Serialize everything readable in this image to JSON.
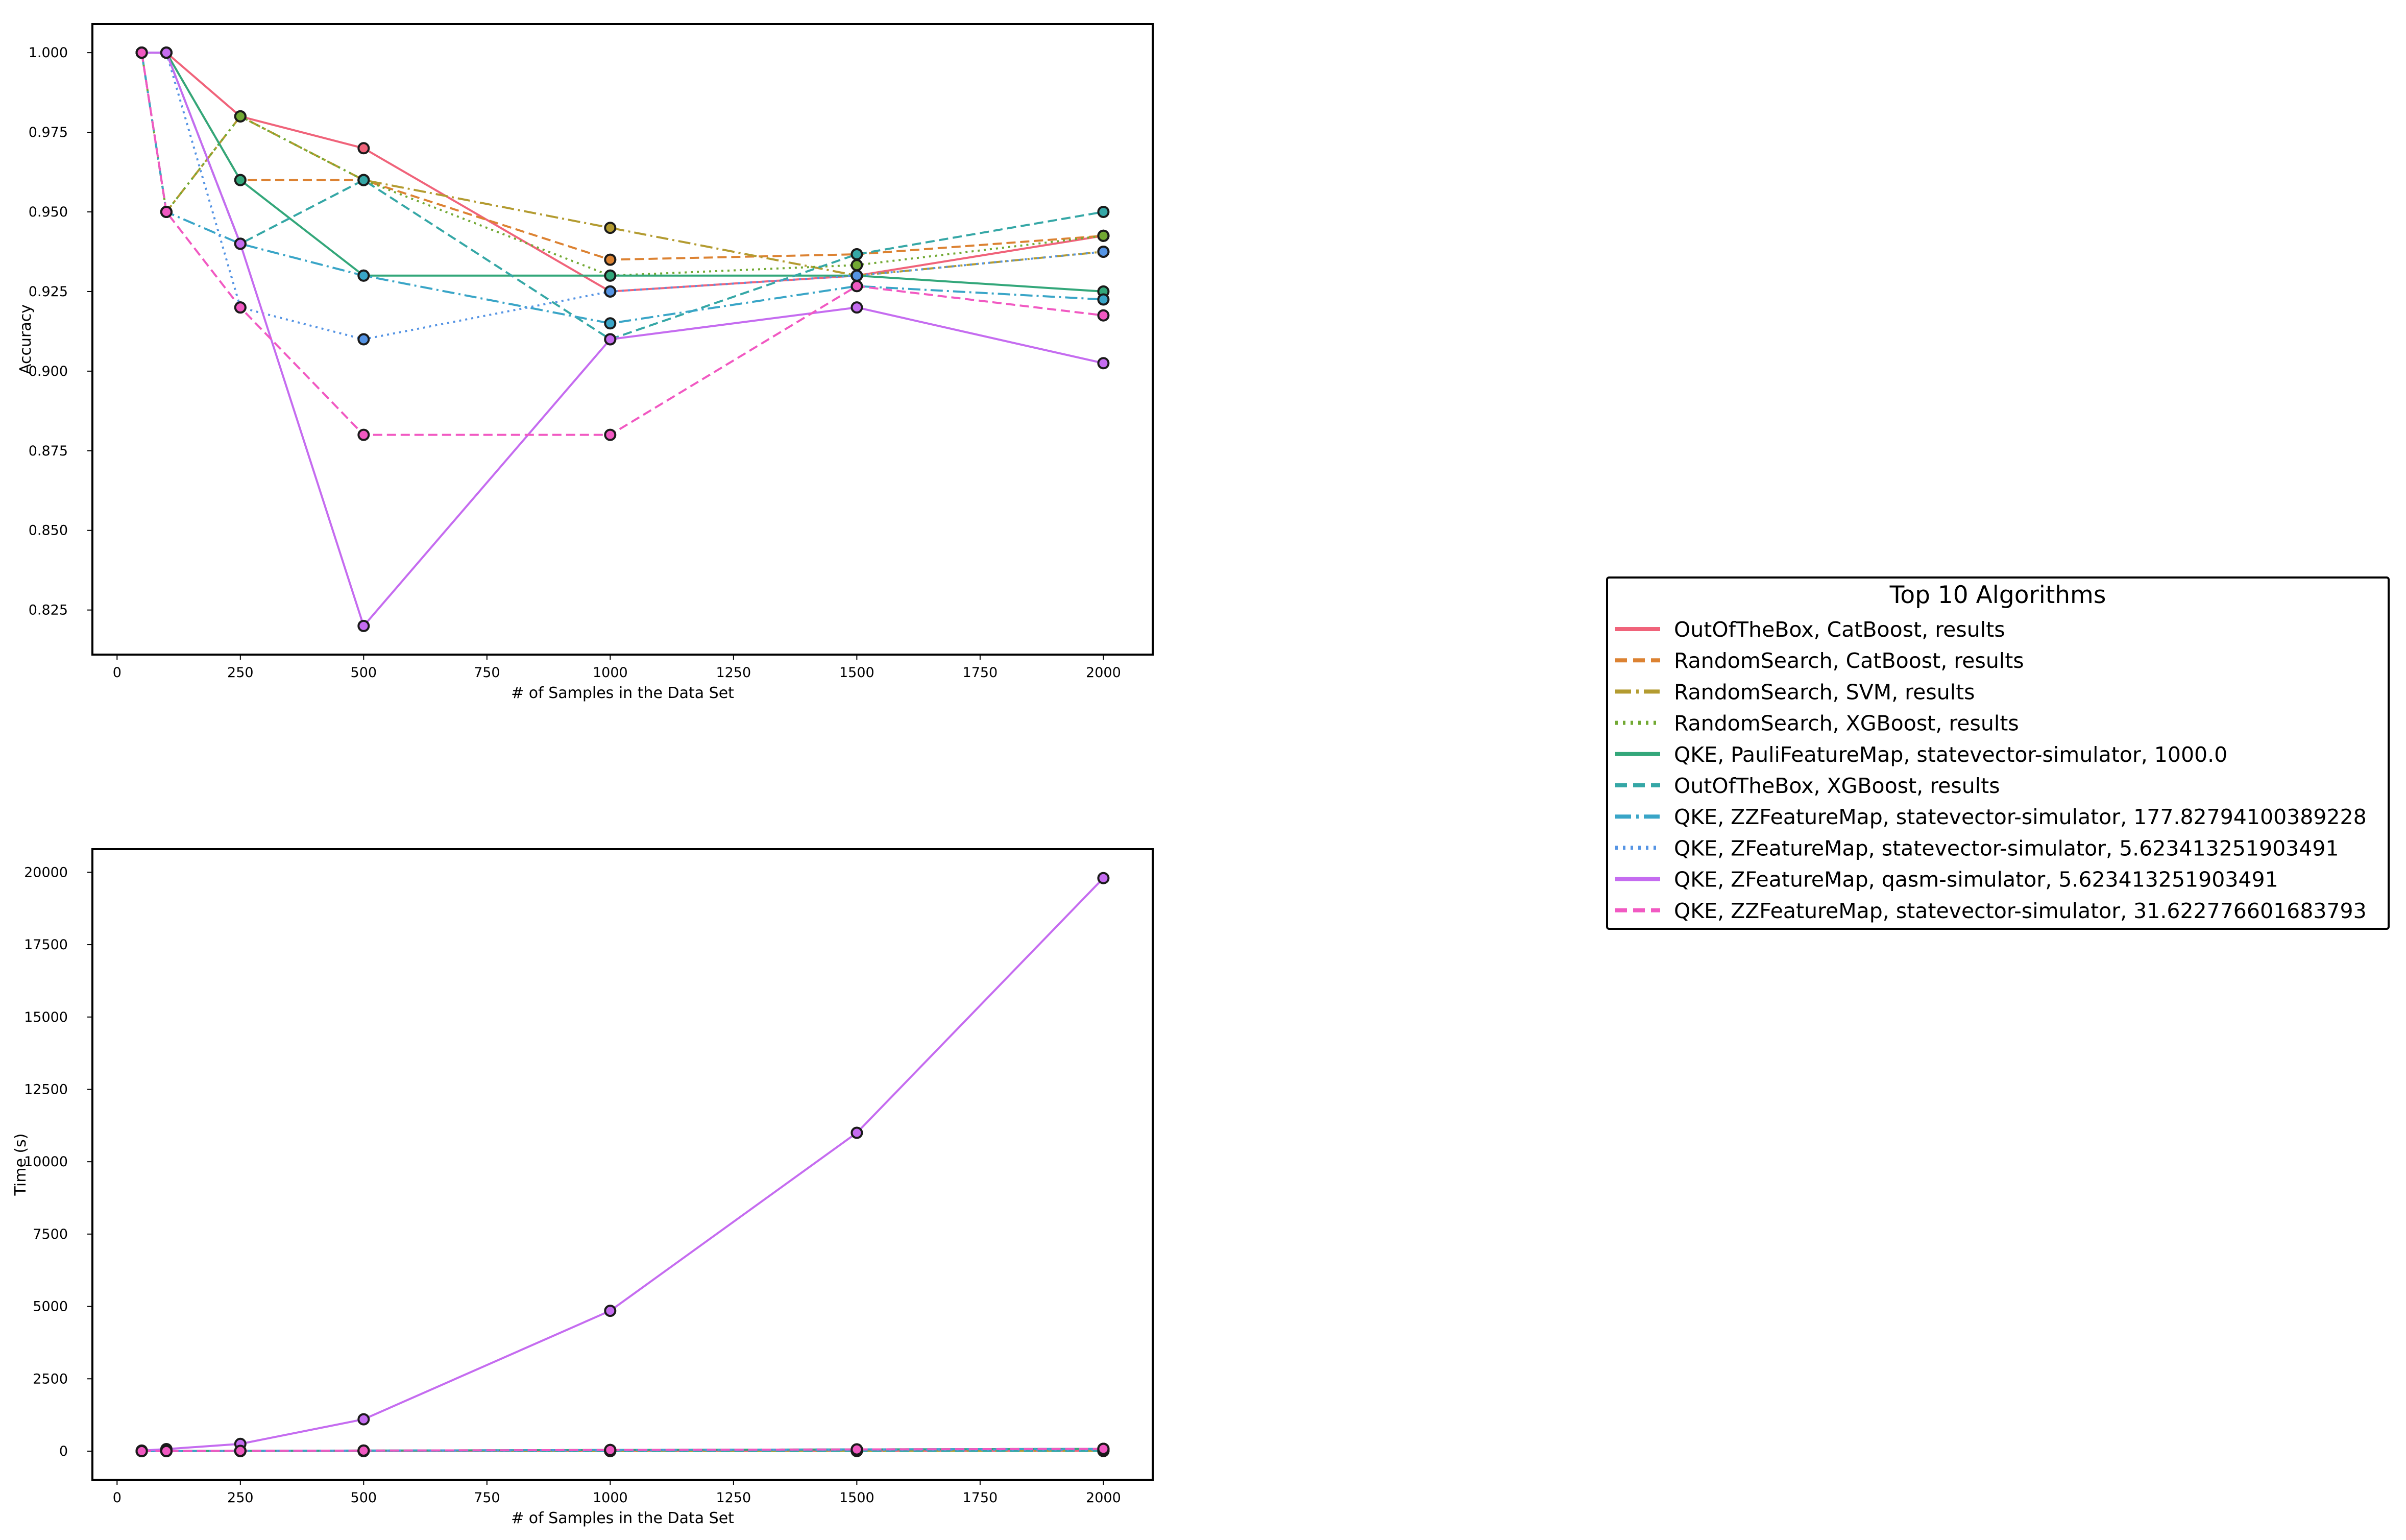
{
  "chart_data": [
    {
      "type": "line",
      "title": "",
      "xlabel": "# of Samples in the Data Set",
      "ylabel": "Accuracy",
      "xlim": [
        -50,
        2100
      ],
      "ylim": [
        0.811,
        1.009
      ],
      "xticks": [
        0,
        250,
        500,
        750,
        1000,
        1250,
        1500,
        1750,
        2000
      ],
      "xtick_labels": [
        "0",
        "250",
        "500",
        "750",
        "1000",
        "1250",
        "1500",
        "1750",
        "2000"
      ],
      "yticks": [
        0.825,
        0.85,
        0.875,
        0.9,
        0.925,
        0.95,
        0.975,
        1.0
      ],
      "ytick_labels": [
        "0.825",
        "0.850",
        "0.875",
        "0.900",
        "0.925",
        "0.950",
        "0.975",
        "1.000"
      ],
      "grid": false,
      "x": [
        50,
        100,
        250,
        500,
        1000,
        1500,
        2000
      ],
      "series": [
        {
          "name": "OutOfTheBox, CatBoost, results",
          "values": [
            1.0,
            1.0,
            0.98,
            0.97,
            0.925,
            0.93,
            0.9425
          ]
        },
        {
          "name": "RandomSearch, CatBoost, results",
          "values": [
            1.0,
            1.0,
            0.96,
            0.96,
            0.935,
            0.9367,
            0.9425
          ]
        },
        {
          "name": "RandomSearch, SVM, results",
          "values": [
            1.0,
            0.95,
            0.98,
            0.96,
            0.945,
            0.93,
            0.9375
          ]
        },
        {
          "name": "RandomSearch, XGBoost, results",
          "values": [
            1.0,
            0.95,
            0.98,
            0.96,
            0.93,
            0.9333,
            0.9425
          ]
        },
        {
          "name": "QKE, PauliFeatureMap, statevector-simulator, 1000.0",
          "values": [
            1.0,
            1.0,
            0.96,
            0.93,
            0.93,
            0.93,
            0.925
          ]
        },
        {
          "name": "OutOfTheBox, XGBoost, results",
          "values": [
            1.0,
            1.0,
            0.94,
            0.96,
            0.91,
            0.9367,
            0.95
          ]
        },
        {
          "name": "QKE, ZZFeatureMap, statevector-simulator, 177.82794100389228",
          "values": [
            1.0,
            0.95,
            0.94,
            0.93,
            0.915,
            0.9267,
            0.9225
          ]
        },
        {
          "name": "QKE, ZFeatureMap, statevector-simulator, 5.623413251903491",
          "values": [
            1.0,
            1.0,
            0.92,
            0.91,
            0.925,
            0.93,
            0.9375
          ]
        },
        {
          "name": "QKE, ZFeatureMap, qasm-simulator, 5.623413251903491",
          "values": [
            1.0,
            1.0,
            0.94,
            0.82,
            0.91,
            0.92,
            0.9025
          ]
        },
        {
          "name": "QKE, ZZFeatureMap, statevector-simulator, 31.622776601683793",
          "values": [
            1.0,
            0.95,
            0.92,
            0.88,
            0.88,
            0.9267,
            0.9175
          ]
        }
      ]
    },
    {
      "type": "line",
      "title": "",
      "xlabel": "# of Samples in the Data Set",
      "ylabel": "Time (s)",
      "xlim": [
        -50,
        2100
      ],
      "ylim": [
        -988,
        20800
      ],
      "xticks": [
        0,
        250,
        500,
        750,
        1000,
        1250,
        1500,
        1750,
        2000
      ],
      "xtick_labels": [
        "0",
        "250",
        "500",
        "750",
        "1000",
        "1250",
        "1500",
        "1750",
        "2000"
      ],
      "yticks": [
        0,
        2500,
        5000,
        7500,
        10000,
        12500,
        15000,
        17500,
        20000
      ],
      "ytick_labels": [
        "0",
        "2500",
        "5000",
        "7500",
        "10000",
        "12500",
        "15000",
        "17500",
        "20000"
      ],
      "grid": false,
      "x": [
        50,
        100,
        250,
        500,
        1000,
        1500,
        2000
      ],
      "series": [
        {
          "name": "OutOfTheBox, CatBoost, results",
          "values": [
            1,
            2,
            3,
            4,
            6,
            8,
            10
          ]
        },
        {
          "name": "RandomSearch, CatBoost, results",
          "values": [
            5,
            8,
            12,
            20,
            40,
            60,
            80
          ]
        },
        {
          "name": "RandomSearch, SVM, results",
          "values": [
            1,
            1,
            2,
            3,
            5,
            8,
            12
          ]
        },
        {
          "name": "RandomSearch, XGBoost, results",
          "values": [
            3,
            5,
            8,
            12,
            20,
            30,
            45
          ]
        },
        {
          "name": "QKE, PauliFeatureMap, statevector-simulator, 1000.0",
          "values": [
            2,
            4,
            10,
            20,
            40,
            60,
            80
          ]
        },
        {
          "name": "OutOfTheBox, XGBoost, results",
          "values": [
            0,
            0,
            1,
            1,
            2,
            3,
            4
          ]
        },
        {
          "name": "QKE, ZZFeatureMap, statevector-simulator, 177.82794100389228",
          "values": [
            2,
            4,
            10,
            20,
            40,
            60,
            80
          ]
        },
        {
          "name": "QKE, ZFeatureMap, statevector-simulator, 5.623413251903491",
          "values": [
            1,
            2,
            6,
            12,
            25,
            40,
            55
          ]
        },
        {
          "name": "QKE, ZFeatureMap, qasm-simulator, 5.623413251903491",
          "values": [
            20,
            70,
            250,
            1100,
            4850,
            11000,
            19800
          ]
        },
        {
          "name": "QKE, ZZFeatureMap, statevector-simulator, 31.622776601683793",
          "values": [
            2,
            4,
            10,
            20,
            40,
            60,
            80
          ]
        }
      ]
    }
  ],
  "legend": {
    "title": "Top 10 Algorithms",
    "placement": "right"
  },
  "series_styles": [
    {
      "color": "#f0637a",
      "dash": "solid"
    },
    {
      "color": "#dc8232",
      "dash": "dashed"
    },
    {
      "color": "#b39b30",
      "dash": "dashdot"
    },
    {
      "color": "#72a933",
      "dash": "dotted"
    },
    {
      "color": "#33a77a",
      "dash": "solid"
    },
    {
      "color": "#35a7a6",
      "dash": "dashed"
    },
    {
      "color": "#39a5c7",
      "dash": "dashdot"
    },
    {
      "color": "#5594e4",
      "dash": "dotted"
    },
    {
      "color": "#c56cf0",
      "dash": "solid"
    },
    {
      "color": "#f159c2",
      "dash": "dashed"
    }
  ]
}
